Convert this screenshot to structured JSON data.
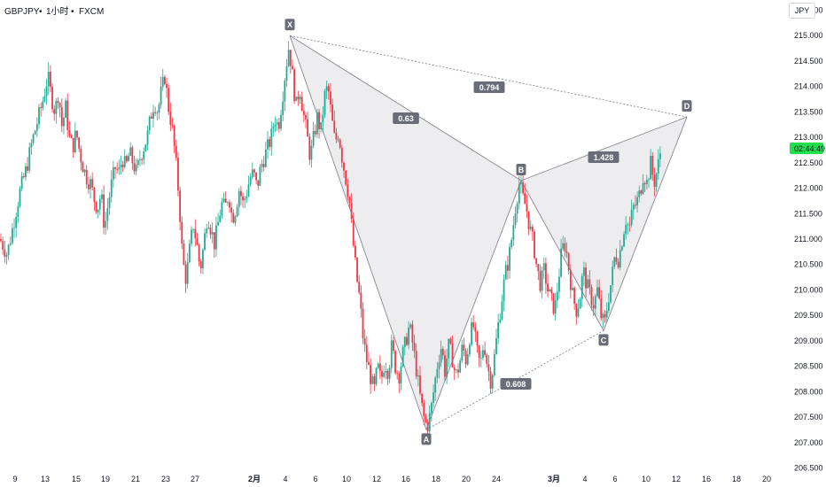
{
  "header": {
    "symbol": "GBPJPY",
    "sep1": "•",
    "interval": "1小时",
    "sep2": "•",
    "exchange": "FXCM"
  },
  "currency_button": "JPY",
  "colors": {
    "up": "#22ab94",
    "down": "#f23645",
    "pattern_fill": "#e9e9ec",
    "pattern_line": "#787b86",
    "label_bg": "#6a6d78",
    "price_tag": "#22e04a",
    "axis_text": "#131722"
  },
  "chart_data": {
    "type": "candlestick",
    "title": "GBPJPY • 1小时 • FXCM",
    "y_axis": {
      "side": "right",
      "range": [
        206.5,
        215.5
      ],
      "ticks": [
        "215.500",
        "215.000",
        "214.500",
        "214.000",
        "213.500",
        "213.000",
        "212.500",
        "212.000",
        "211.500",
        "211.000",
        "210.500",
        "210.000",
        "209.500",
        "209.000",
        "208.500",
        "208.000",
        "207.500",
        "207.000",
        "206.500"
      ]
    },
    "x_axis": {
      "ticks": [
        "9",
        "13",
        "15",
        "19",
        "21",
        "23",
        "27",
        "2月",
        "4",
        "6",
        "10",
        "12",
        "16",
        "18",
        "20",
        "24",
        "3月",
        "4",
        "6",
        "10",
        "12",
        "16",
        "18",
        "20"
      ],
      "bold_ticks": [
        "2月",
        "3月"
      ]
    },
    "last_price": "212.775",
    "countdown": "02:44:49",
    "pattern": {
      "type": "XABCD",
      "points": [
        {
          "label": "X",
          "price": 215.0
        },
        {
          "label": "A",
          "price": 207.25
        },
        {
          "label": "B",
          "price": 212.15
        },
        {
          "label": "C",
          "price": 209.2
        },
        {
          "label": "D",
          "price": 213.4
        }
      ],
      "ratios": [
        {
          "value": "0.63",
          "between": "XA-AB"
        },
        {
          "value": "0.794",
          "between": "X-D"
        },
        {
          "value": "1.428",
          "between": "B-D"
        },
        {
          "value": "0.608",
          "between": "A-C"
        }
      ]
    },
    "candles_path": [
      [
        0,
        211.0
      ],
      [
        8,
        210.7
      ],
      [
        14,
        211.2
      ],
      [
        22,
        211.9
      ],
      [
        30,
        212.4
      ],
      [
        36,
        212.9
      ],
      [
        42,
        213.3
      ],
      [
        48,
        213.7
      ],
      [
        54,
        214.2
      ],
      [
        58,
        213.8
      ],
      [
        62,
        213.5
      ],
      [
        66,
        213.9
      ],
      [
        70,
        213.2
      ],
      [
        74,
        213.6
      ],
      [
        78,
        213.0
      ],
      [
        82,
        212.8
      ],
      [
        86,
        213.1
      ],
      [
        90,
        212.7
      ],
      [
        94,
        212.4
      ],
      [
        98,
        212.2
      ],
      [
        102,
        212.1
      ],
      [
        106,
        211.8
      ],
      [
        110,
        211.6
      ],
      [
        114,
        211.9
      ],
      [
        118,
        211.2
      ],
      [
        122,
        211.7
      ],
      [
        126,
        212.1
      ],
      [
        130,
        212.4
      ],
      [
        134,
        212.3
      ],
      [
        138,
        212.6
      ],
      [
        142,
        212.4
      ],
      [
        146,
        212.7
      ],
      [
        150,
        212.5
      ],
      [
        154,
        212.3
      ],
      [
        158,
        212.6
      ],
      [
        162,
        212.8
      ],
      [
        166,
        213.0
      ],
      [
        170,
        213.4
      ],
      [
        174,
        213.7
      ],
      [
        178,
        213.5
      ],
      [
        182,
        213.9
      ],
      [
        186,
        214.2
      ],
      [
        190,
        213.6
      ],
      [
        194,
        213.2
      ],
      [
        198,
        212.6
      ],
      [
        202,
        211.8
      ],
      [
        206,
        210.6
      ],
      [
        210,
        210.2
      ],
      [
        214,
        210.8
      ],
      [
        218,
        211.3
      ],
      [
        222,
        210.9
      ],
      [
        226,
        210.4
      ],
      [
        230,
        210.9
      ],
      [
        234,
        211.5
      ],
      [
        238,
        211.2
      ],
      [
        242,
        210.9
      ],
      [
        246,
        211.3
      ],
      [
        250,
        211.7
      ],
      [
        254,
        211.6
      ],
      [
        258,
        211.9
      ],
      [
        262,
        211.4
      ],
      [
        266,
        211.6
      ],
      [
        270,
        212.0
      ],
      [
        274,
        211.7
      ],
      [
        278,
        211.9
      ],
      [
        282,
        212.2
      ],
      [
        286,
        212.3
      ],
      [
        290,
        212.0
      ],
      [
        294,
        212.4
      ],
      [
        298,
        212.6
      ],
      [
        302,
        212.8
      ],
      [
        306,
        213.0
      ],
      [
        310,
        213.4
      ],
      [
        314,
        213.2
      ],
      [
        318,
        213.7
      ],
      [
        322,
        214.3
      ],
      [
        326,
        214.8
      ],
      [
        330,
        214.2
      ],
      [
        334,
        213.6
      ],
      [
        338,
        214.0
      ],
      [
        342,
        213.5
      ],
      [
        346,
        213.1
      ],
      [
        350,
        212.6
      ],
      [
        354,
        213.0
      ],
      [
        358,
        213.4
      ],
      [
        362,
        213.1
      ],
      [
        366,
        213.8
      ],
      [
        370,
        214.0
      ],
      [
        374,
        213.4
      ],
      [
        378,
        212.9
      ],
      [
        382,
        213.1
      ],
      [
        386,
        212.6
      ],
      [
        390,
        212.2
      ],
      [
        394,
        211.8
      ],
      [
        398,
        211.0
      ],
      [
        402,
        210.3
      ],
      [
        406,
        209.8
      ],
      [
        410,
        209.0
      ],
      [
        414,
        208.6
      ],
      [
        418,
        208.3
      ],
      [
        422,
        208.0
      ],
      [
        426,
        208.5
      ],
      [
        430,
        208.2
      ],
      [
        434,
        208.6
      ],
      [
        438,
        208.4
      ],
      [
        442,
        208.9
      ],
      [
        446,
        208.5
      ],
      [
        450,
        208.3
      ],
      [
        454,
        208.7
      ],
      [
        458,
        209.0
      ],
      [
        462,
        209.3
      ],
      [
        466,
        208.9
      ],
      [
        470,
        208.4
      ],
      [
        474,
        207.9
      ],
      [
        478,
        207.5
      ],
      [
        482,
        207.3
      ],
      [
        486,
        207.6
      ],
      [
        490,
        208.1
      ],
      [
        494,
        208.6
      ],
      [
        498,
        208.9
      ],
      [
        502,
        208.4
      ],
      [
        506,
        208.9
      ],
      [
        510,
        208.7
      ],
      [
        514,
        208.3
      ],
      [
        518,
        208.5
      ],
      [
        522,
        208.9
      ],
      [
        526,
        208.6
      ],
      [
        530,
        209.1
      ],
      [
        534,
        209.3
      ],
      [
        538,
        208.8
      ],
      [
        542,
        208.5
      ],
      [
        546,
        209.0
      ],
      [
        550,
        208.5
      ],
      [
        554,
        208.2
      ],
      [
        558,
        208.7
      ],
      [
        562,
        209.3
      ],
      [
        566,
        209.8
      ],
      [
        570,
        210.3
      ],
      [
        574,
        210.6
      ],
      [
        578,
        211.1
      ],
      [
        582,
        211.7
      ],
      [
        586,
        212.1
      ],
      [
        590,
        211.8
      ],
      [
        594,
        211.6
      ],
      [
        598,
        211.2
      ],
      [
        602,
        210.9
      ],
      [
        606,
        210.4
      ],
      [
        610,
        210.1
      ],
      [
        614,
        210.4
      ],
      [
        618,
        210.0
      ],
      [
        622,
        209.8
      ],
      [
        626,
        209.6
      ],
      [
        630,
        210.2
      ],
      [
        634,
        210.8
      ],
      [
        638,
        210.9
      ],
      [
        642,
        210.4
      ],
      [
        646,
        209.9
      ],
      [
        650,
        209.6
      ],
      [
        654,
        209.8
      ],
      [
        658,
        210.4
      ],
      [
        662,
        210.1
      ],
      [
        666,
        209.9
      ],
      [
        670,
        209.7
      ],
      [
        674,
        210.0
      ],
      [
        678,
        209.5
      ],
      [
        682,
        209.3
      ],
      [
        686,
        209.8
      ],
      [
        690,
        210.2
      ],
      [
        694,
        210.7
      ],
      [
        698,
        210.6
      ],
      [
        702,
        211.0
      ],
      [
        706,
        211.4
      ],
      [
        710,
        211.2
      ],
      [
        714,
        211.6
      ],
      [
        718,
        211.7
      ],
      [
        722,
        211.9
      ],
      [
        726,
        212.3
      ],
      [
        730,
        212.1
      ],
      [
        734,
        212.5
      ],
      [
        738,
        212.1
      ],
      [
        742,
        212.4
      ],
      [
        746,
        212.8
      ]
    ]
  }
}
